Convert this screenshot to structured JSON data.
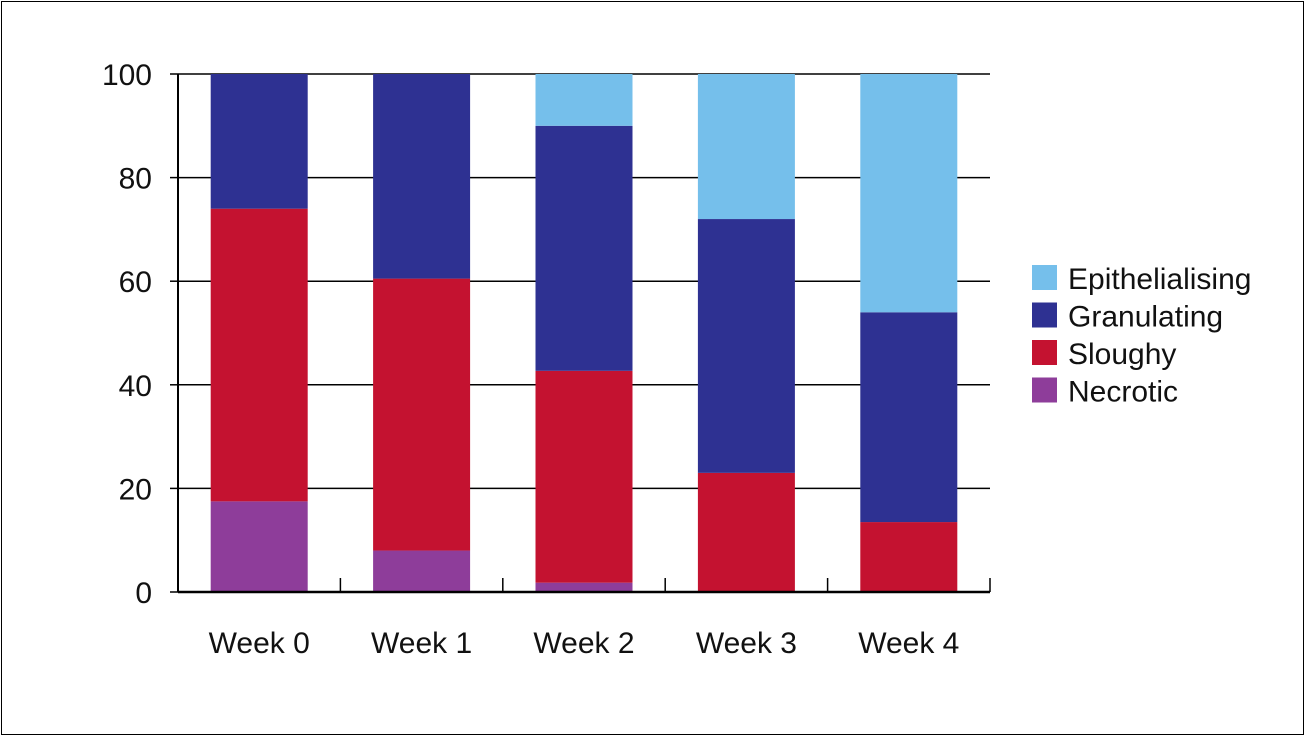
{
  "chart_data": {
    "type": "bar",
    "stacked": true,
    "categories": [
      "Week 0",
      "Week 1",
      "Week 2",
      "Week 3",
      "Week 4"
    ],
    "series": [
      {
        "name": "Necrotic",
        "color": "#8e3d9a",
        "values": [
          17.5,
          8,
          1.8,
          0,
          0
        ]
      },
      {
        "name": "Sloughy",
        "color": "#c41230",
        "values": [
          56.5,
          52.5,
          40.9,
          23,
          13.5
        ]
      },
      {
        "name": "Granulating",
        "color": "#2e3192",
        "values": [
          26,
          39.5,
          47.3,
          49,
          40.5
        ]
      },
      {
        "name": "Epithelialising",
        "color": "#75bfeb",
        "values": [
          0,
          0,
          10,
          28,
          46
        ]
      }
    ],
    "yticks": [
      0,
      20,
      40,
      60,
      80,
      100
    ],
    "ylim": [
      0,
      100
    ],
    "grid": true,
    "legend_position": "right",
    "legend_order": [
      "Epithelialising",
      "Granulating",
      "Sloughy",
      "Necrotic"
    ]
  }
}
